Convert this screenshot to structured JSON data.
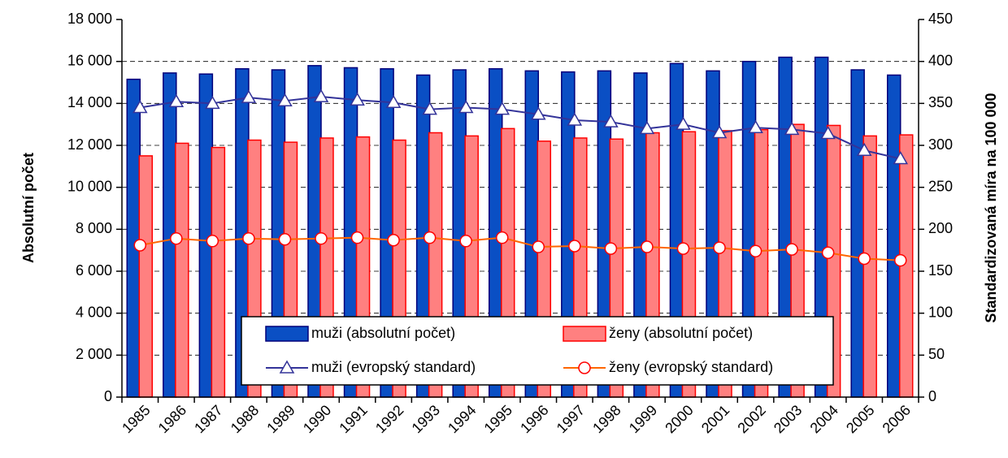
{
  "chart_data": {
    "type": "bar",
    "categories": [
      "1985",
      "1986",
      "1987",
      "1988",
      "1989",
      "1990",
      "1991",
      "1992",
      "1993",
      "1994",
      "1995",
      "1996",
      "1997",
      "1998",
      "1999",
      "2000",
      "2001",
      "2002",
      "2003",
      "2004",
      "2005",
      "2006"
    ],
    "y_label": "Absolutní počet",
    "y2_label": "Standardizovaná míra na 100 000",
    "ylim": [
      0,
      18000
    ],
    "yticks": [
      0,
      {
        "value": 2000,
        "label": "2 000"
      },
      {
        "value": 4000,
        "label": "4 000"
      },
      {
        "value": 6000,
        "label": "6 000"
      },
      {
        "value": 8000,
        "label": "8 000"
      },
      {
        "value": 10000,
        "label": "10 000"
      },
      {
        "value": 12000,
        "label": "12 000"
      },
      {
        "value": 14000,
        "label": "14 000"
      },
      {
        "value": 16000,
        "label": "16 000"
      },
      {
        "value": 18000,
        "label": "18 000"
      }
    ],
    "y2lim": [
      0,
      450
    ],
    "y2ticks": [
      0,
      50,
      100,
      150,
      200,
      250,
      300,
      350,
      400,
      450
    ],
    "grid": true,
    "legend": "bottom-center",
    "series": [
      {
        "name": "muži (absolutní počet)",
        "type": "bar",
        "color": "#0a4fc4",
        "edge": "#00007a",
        "values": [
          15150,
          15450,
          15400,
          15650,
          15600,
          15800,
          15700,
          15650,
          15350,
          15600,
          15650,
          15550,
          15500,
          15550,
          15450,
          15900,
          15550,
          16000,
          16200,
          16200,
          15600,
          15350
        ]
      },
      {
        "name": "ženy (absolutní počet)",
        "type": "bar",
        "color": "#ff8080",
        "edge": "#ff0000",
        "values": [
          11500,
          12100,
          11900,
          12250,
          12150,
          12350,
          12400,
          12250,
          12600,
          12450,
          12800,
          12200,
          12350,
          12300,
          12600,
          12650,
          12700,
          12750,
          13000,
          12950,
          12450,
          12500
        ]
      },
      {
        "name": "muži (evropský standard)",
        "type": "line",
        "axis": "y2",
        "color": "#333399",
        "marker": "triangle",
        "values": [
          345,
          352,
          350,
          357,
          353,
          358,
          354,
          351,
          343,
          345,
          343,
          337,
          330,
          328,
          320,
          325,
          315,
          321,
          319,
          314,
          294,
          284
        ]
      },
      {
        "name": "ženy (evropský standard)",
        "type": "line",
        "axis": "y2",
        "color": "#ff6600",
        "edge": "#ff0000",
        "marker": "circle",
        "values": [
          181,
          189,
          186,
          189,
          188,
          189,
          190,
          187,
          190,
          186,
          190,
          179,
          180,
          177,
          179,
          177,
          178,
          174,
          176,
          172,
          165,
          163
        ]
      }
    ]
  }
}
